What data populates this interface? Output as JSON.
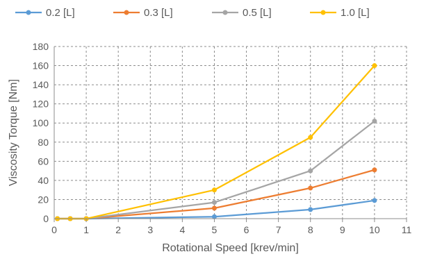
{
  "chart_data": {
    "type": "line",
    "title": "",
    "xlabel": "Rotational Speed [krev/min]",
    "ylabel": "Viscosity Torque [Nm]",
    "xlim": [
      0,
      11
    ],
    "ylim": [
      0,
      180
    ],
    "xticks": [
      0,
      1,
      2,
      3,
      4,
      5,
      6,
      7,
      8,
      9,
      10,
      11
    ],
    "yticks": [
      0,
      20,
      40,
      60,
      80,
      100,
      120,
      140,
      160,
      180
    ],
    "grid": "dashed",
    "legend": "top",
    "x": [
      0.1,
      0.5,
      1,
      5,
      8,
      10
    ],
    "series": [
      {
        "name": "0.2 [L]",
        "color": "#5B9BD5",
        "values": [
          0,
          0,
          0,
          2,
          9.5,
          19
        ]
      },
      {
        "name": "0.3 [L]",
        "color": "#ED7D31",
        "values": [
          0,
          0,
          0,
          11,
          32,
          51
        ]
      },
      {
        "name": "0.5 [L]",
        "color": "#A5A5A5",
        "values": [
          0,
          0,
          0,
          17,
          50,
          102
        ]
      },
      {
        "name": "1.0 [L]",
        "color": "#FFC000",
        "values": [
          0,
          0,
          0,
          30,
          85,
          160
        ]
      }
    ]
  }
}
